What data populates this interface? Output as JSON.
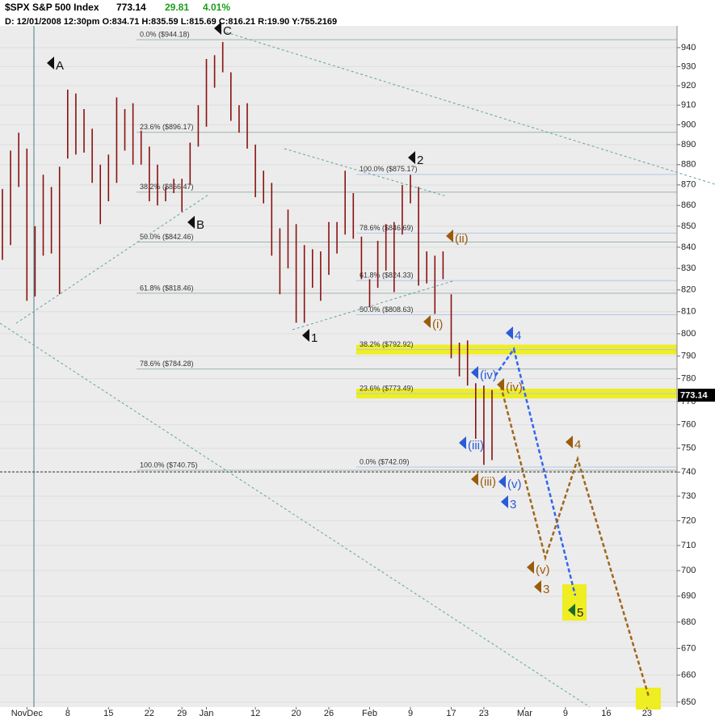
{
  "chart_data": {
    "type": "ohlc",
    "header": {
      "symbol": "$SPX S&P 500 Index",
      "last": "773.14",
      "change": "29.81",
      "change_pct": "4.01%",
      "info": "D: 12/01/2008 12:30pm O:834.71 H:835.59 L:815.69 C:816.21 R:19.90 Y:755.2169"
    },
    "last_price_tag": "773.14",
    "categories": [
      null,
      null,
      null,
      "NovDec",
      null,
      null,
      null,
      null,
      "8",
      null,
      null,
      null,
      null,
      "15",
      null,
      null,
      null,
      null,
      "22",
      null,
      null,
      null,
      "29",
      null,
      null,
      "Jan",
      null,
      null,
      null,
      null,
      null,
      "12",
      null,
      null,
      null,
      null,
      "20",
      null,
      null,
      null,
      "26",
      null,
      null,
      null,
      null,
      "Feb",
      null,
      null,
      null,
      null,
      "9",
      null,
      null,
      null,
      null,
      "17",
      null,
      null,
      null,
      "23",
      null,
      null,
      null,
      null,
      "Mar",
      null,
      null,
      null,
      null,
      "9",
      null,
      null,
      null,
      null,
      "16",
      null,
      null,
      null,
      null,
      "23"
    ],
    "bars": {
      "color": "#8a1010",
      "high": [
        868,
        887,
        896,
        888,
        850,
        875,
        869,
        879,
        918,
        916,
        908,
        898,
        880,
        885,
        914,
        908,
        911,
        897,
        889,
        880,
        869,
        873,
        873,
        891,
        910,
        934,
        936,
        943,
        927,
        910,
        911,
        890,
        877,
        871,
        849,
        858,
        851,
        841,
        839,
        838,
        852,
        852,
        877,
        866,
        845,
        825,
        843,
        851,
        852,
        870,
        875,
        869,
        838,
        836,
        838,
        818,
        796,
        797,
        778,
        777,
        775,
        null,
        null,
        null,
        null,
        null,
        null,
        null,
        null,
        null,
        null,
        null,
        null,
        null,
        null,
        null,
        null,
        null,
        null
      ],
      "low": [
        834,
        841,
        869,
        815,
        817,
        836,
        837,
        818,
        883,
        885,
        886,
        871,
        851,
        862,
        871,
        887,
        880,
        880,
        862,
        860,
        862,
        866,
        857,
        870,
        889,
        899,
        919,
        927,
        902,
        896,
        888,
        864,
        861,
        836,
        818,
        830,
        805,
        805,
        821,
        815,
        827,
        837,
        846,
        844,
        825,
        812,
        821,
        829,
        819,
        846,
        861,
        822,
        823,
        809,
        825,
        789,
        781,
        777,
        754,
        743,
        745,
        null,
        null,
        null,
        null,
        null,
        null,
        null,
        null,
        null,
        null,
        null,
        null,
        null,
        null,
        null,
        null,
        null,
        null
      ]
    },
    "ylim": [
      648.2,
      951.6
    ],
    "log_scale": true,
    "yticks": [
      650,
      660,
      670,
      680,
      690,
      700,
      710,
      720,
      730,
      740,
      750,
      760,
      770,
      780,
      790,
      800,
      810,
      820,
      830,
      840,
      850,
      860,
      870,
      880,
      890,
      900,
      910,
      920,
      930,
      940
    ],
    "grid": true,
    "fib_sets": [
      {
        "color": "#9fb5aa",
        "levels": [
          {
            "text": "0.0% ($944.18)",
            "value": 944.18
          },
          {
            "text": "23.6% ($896.17)",
            "value": 896.17
          },
          {
            "text": "38.2% ($866.47)",
            "value": 866.47
          },
          {
            "text": "50.0% ($842.46)",
            "value": 842.46
          },
          {
            "text": "61.8% ($818.46)",
            "value": 818.46
          },
          {
            "text": "78.6% ($784.28)",
            "value": 784.28
          },
          {
            "text": "100.0% ($740.75)",
            "value": 740.75
          }
        ]
      },
      {
        "color": "#b4c6ea",
        "levels": [
          {
            "text": "100.0% ($875.17)",
            "value": 875.17
          },
          {
            "text": "78.6% ($846.69)",
            "value": 846.69
          },
          {
            "text": "61.8% ($824.33)",
            "value": 824.33
          },
          {
            "text": "50.0% ($808.63)",
            "value": 808.63
          },
          {
            "text": "38.2% ($792.92)",
            "value": 792.92,
            "highlight": true
          },
          {
            "text": "23.6% ($773.49)",
            "value": 773.49,
            "highlight": true
          },
          {
            "text": "0.0% ($742.09)",
            "value": 742.09
          }
        ]
      }
    ],
    "waves": [
      {
        "text": "A",
        "color": "#111111"
      },
      {
        "text": "B",
        "color": "#111111"
      },
      {
        "text": "C",
        "color": "#111111"
      },
      {
        "text": "1",
        "color": "#111111"
      },
      {
        "text": "2",
        "color": "#111111"
      },
      {
        "text": "(i)",
        "color": "#9a5b0a"
      },
      {
        "text": "(ii)",
        "color": "#9a5b0a"
      },
      {
        "text": "(iv)",
        "color": "#2a5bd8"
      },
      {
        "text": "(iv)",
        "color": "#9a5b0a"
      },
      {
        "text": "(iii)",
        "color": "#2a5bd8"
      },
      {
        "text": "(iii)",
        "color": "#9a5b0a"
      },
      {
        "text": "(v)",
        "color": "#2a5bd8"
      },
      {
        "text": "3",
        "color": "#2a5bd8"
      },
      {
        "text": "4",
        "color": "#2a5bd8"
      },
      {
        "text": "5",
        "color": "#1d6b2a"
      },
      {
        "text": "(v)",
        "color": "#9a5b0a"
      },
      {
        "text": "3",
        "color": "#9a5b0a"
      },
      {
        "text": "4",
        "color": "#9a5b0a"
      }
    ]
  }
}
